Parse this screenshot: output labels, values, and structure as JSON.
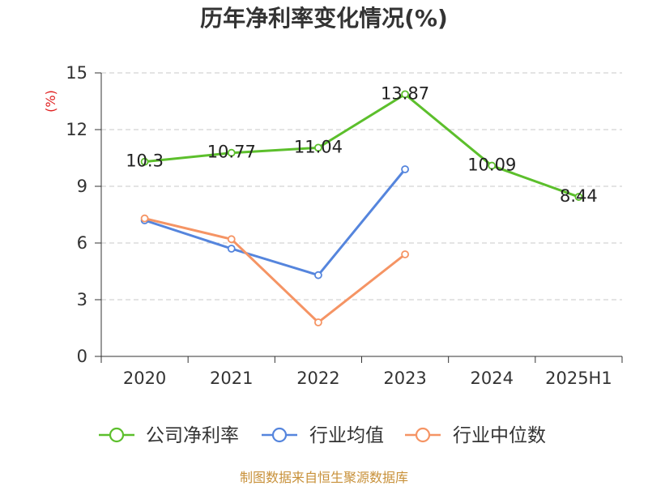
{
  "chart_data": {
    "type": "line",
    "title": "历年净利率变化情况(%)",
    "ylabel": "(%)",
    "ylabel_color": "#e02020",
    "categories": [
      "2020",
      "2021",
      "2022",
      "2023",
      "2024",
      "2025H1"
    ],
    "ylim": [
      0,
      15
    ],
    "yticks": [
      0,
      3,
      6,
      9,
      12,
      15
    ],
    "grid": true,
    "legend_position": "bottom",
    "series": [
      {
        "name": "公司净利率",
        "color": "#5cbf2c",
        "show_labels": true,
        "values": [
          10.3,
          10.77,
          11.04,
          13.87,
          10.09,
          8.44
        ]
      },
      {
        "name": "行业均值",
        "color": "#5585dd",
        "show_labels": false,
        "values": [
          7.2,
          5.7,
          4.3,
          9.9,
          null,
          null
        ]
      },
      {
        "name": "行业中位数",
        "color": "#f59464",
        "show_labels": false,
        "values": [
          7.3,
          6.2,
          1.8,
          5.4,
          null,
          null
        ]
      }
    ]
  },
  "footer": {
    "text": "制图数据来自恒生聚源数据库",
    "color": "#c8913a"
  }
}
